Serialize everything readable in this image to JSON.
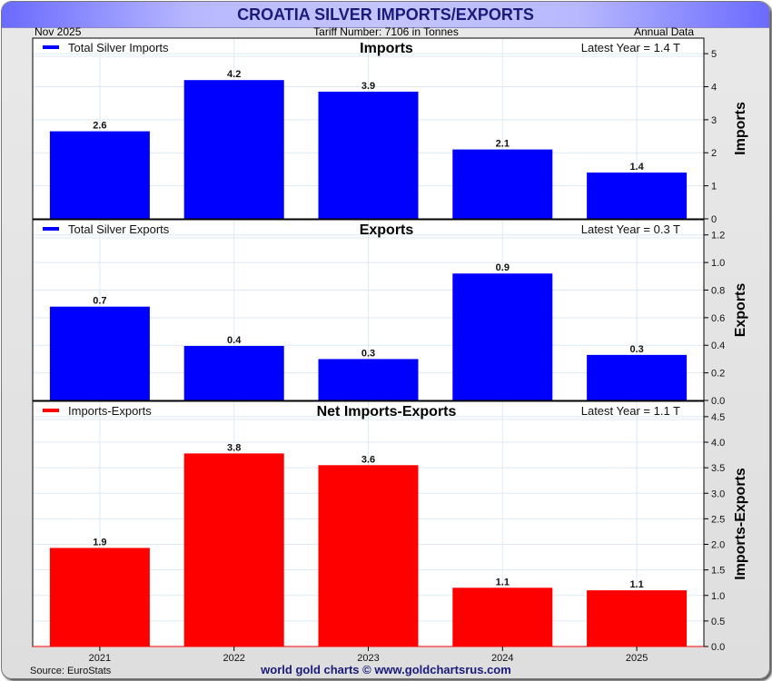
{
  "header": {
    "title": "CROATIA SILVER IMPORTS/EXPORTS",
    "date": "Nov  2025",
    "tariff": "Tariff Number: 7106 in Tonnes",
    "frequency": "Annual Data"
  },
  "footer": {
    "source": "Source: EuroStats",
    "credit": "world gold charts © www.goldchartsrus.com"
  },
  "colors": {
    "imports": "#0000ff",
    "exports": "#0000ff",
    "net": "#ff0000",
    "title": "#1a1a7a",
    "grid": "#dde9f5"
  },
  "chart_data": [
    {
      "type": "bar",
      "title": "Imports",
      "legend": "Total Silver Imports",
      "latest": "Latest Year = 1.4 T",
      "ylabel": "Imports",
      "xlabel": "",
      "categories": [
        "2021",
        "2022",
        "2023",
        "2024",
        "2025"
      ],
      "values": [
        2.65,
        4.2,
        3.85,
        2.1,
        1.4
      ],
      "data_labels": [
        "2.6",
        "4.2",
        "3.9",
        "2.1",
        "1.4"
      ],
      "ylim": [
        0,
        5.47
      ],
      "yticks": [
        0,
        1,
        2,
        3,
        4,
        5
      ],
      "ytick_labels": [
        "0",
        "1",
        "2",
        "3",
        "4",
        "5"
      ],
      "color": "#0000ff",
      "grid": true,
      "legend_position": "top-left",
      "yaxis_side": "right"
    },
    {
      "type": "bar",
      "title": "Exports",
      "legend": "Total Silver Exports",
      "latest": "Latest Year = 0.3 T",
      "ylabel": "Exports",
      "xlabel": "",
      "categories": [
        "2021",
        "2022",
        "2023",
        "2024",
        "2025"
      ],
      "values": [
        0.68,
        0.395,
        0.3,
        0.92,
        0.33
      ],
      "data_labels": [
        "0.7",
        "0.4",
        "0.3",
        "0.9",
        "0.3"
      ],
      "ylim": [
        0,
        1.31
      ],
      "yticks": [
        0,
        0.2,
        0.4,
        0.6,
        0.8,
        1.0,
        1.2
      ],
      "ytick_labels": [
        "0.0",
        "0.2",
        "0.4",
        "0.6",
        "0.8",
        "1.0",
        "1.2"
      ],
      "color": "#0000ff",
      "grid": true,
      "legend_position": "top-left",
      "yaxis_side": "right"
    },
    {
      "type": "bar",
      "title": "Net Imports-Exports",
      "legend": "Imports-Exports",
      "latest": "Latest Year = 1.1 T",
      "ylabel": "Imports-Exports",
      "xlabel": "",
      "categories": [
        "2021",
        "2022",
        "2023",
        "2024",
        "2025"
      ],
      "values": [
        1.93,
        3.78,
        3.55,
        1.15,
        1.1
      ],
      "data_labels": [
        "1.9",
        "3.8",
        "3.6",
        "1.1",
        "1.1"
      ],
      "ylim": [
        0,
        4.8
      ],
      "yticks": [
        0,
        0.5,
        1.0,
        1.5,
        2.0,
        2.5,
        3.0,
        3.5,
        4.0,
        4.5
      ],
      "ytick_labels": [
        "0.0",
        "0.5",
        "1.0",
        "1.5",
        "2.0",
        "2.5",
        "3.0",
        "3.5",
        "4.0",
        "4.5"
      ],
      "color": "#ff0000",
      "grid": true,
      "legend_position": "top-left",
      "yaxis_side": "right"
    }
  ]
}
